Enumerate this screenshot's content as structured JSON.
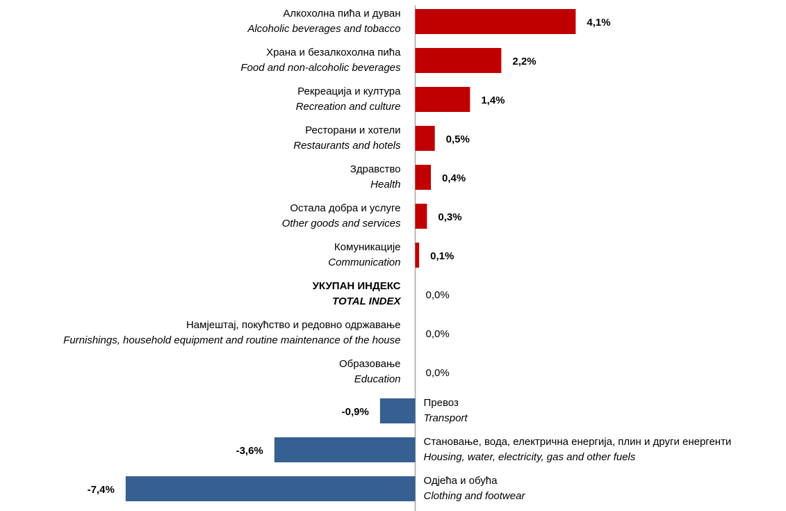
{
  "chart_data": {
    "type": "hbar",
    "categories": [
      "Алкохолна пића и дуван",
      "Храна и безалкохолна пића",
      "Рекреација и култура",
      "Ресторани и хотели",
      "Здравство",
      "Остала добра и услуге",
      "Комуникације",
      "УКУПАН ИНДЕКС",
      "Намјештај, покућство и редовно одржавање",
      "Образовање",
      "Превоз",
      "Становање, вода, електрична енергија, плин и други енергенти",
      "Одјећа и обућа"
    ],
    "categories_en": [
      "Alcoholic beverages and tobacco",
      "Food and non-alcoholic beverages",
      "Recreation and culture",
      "Restaurants and hotels",
      "Health",
      "Other goods and services",
      "Communication",
      "TOTAL INDEX",
      "Furnishings, household equipment and routine maintenance of the house",
      "Education",
      "Transport",
      "Housing, water, electricity, gas and other fuels",
      "Clothing and footwear"
    ],
    "values": [
      4.1,
      2.2,
      1.4,
      0.5,
      0.4,
      0.3,
      0.1,
      0.0,
      0.0,
      0.0,
      -0.9,
      -3.6,
      -7.4
    ],
    "value_labels": [
      "4,1%",
      "2,2%",
      "1,4%",
      "0,5%",
      "0,4%",
      "0,3%",
      "0,1%",
      "0,0%",
      "0,0%",
      "0,0%",
      "-0,9%",
      "-3,6%",
      "-7,4%"
    ],
    "positive_color": "#c00000",
    "negative_color": "#376092",
    "xlim": [
      -8,
      8
    ]
  }
}
